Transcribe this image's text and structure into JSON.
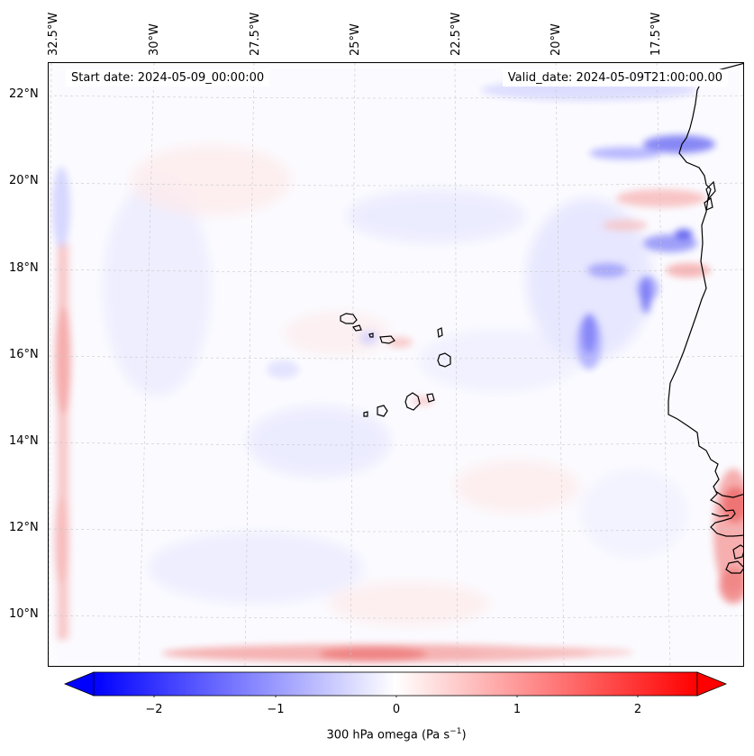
{
  "map": {
    "start_date": "Start date: 2024-05-09_00:00:00",
    "valid_date": "Valid_date: 2024-05-09T21:00:00.00",
    "lon_labels": [
      "32.5°W",
      "30°W",
      "27.5°W",
      "25°W",
      "22.5°W",
      "20°W",
      "17.5°W"
    ],
    "lat_labels": [
      "22°N",
      "20°N",
      "18°N",
      "16°N",
      "14°N",
      "12°N",
      "10°N"
    ],
    "coastline_color": "#000000",
    "positive_color": "#ff0000",
    "negative_color": "#0000ff"
  },
  "colorbar": {
    "ticks": [
      "−2",
      "−1",
      "0",
      "1",
      "2"
    ],
    "tick_values": [
      -2,
      -1,
      0,
      1,
      2
    ],
    "range": [
      -2.6,
      2.6
    ],
    "label_main": "300 hPa omega (Pa s",
    "label_sup": "−1",
    "label_end": ")"
  }
}
